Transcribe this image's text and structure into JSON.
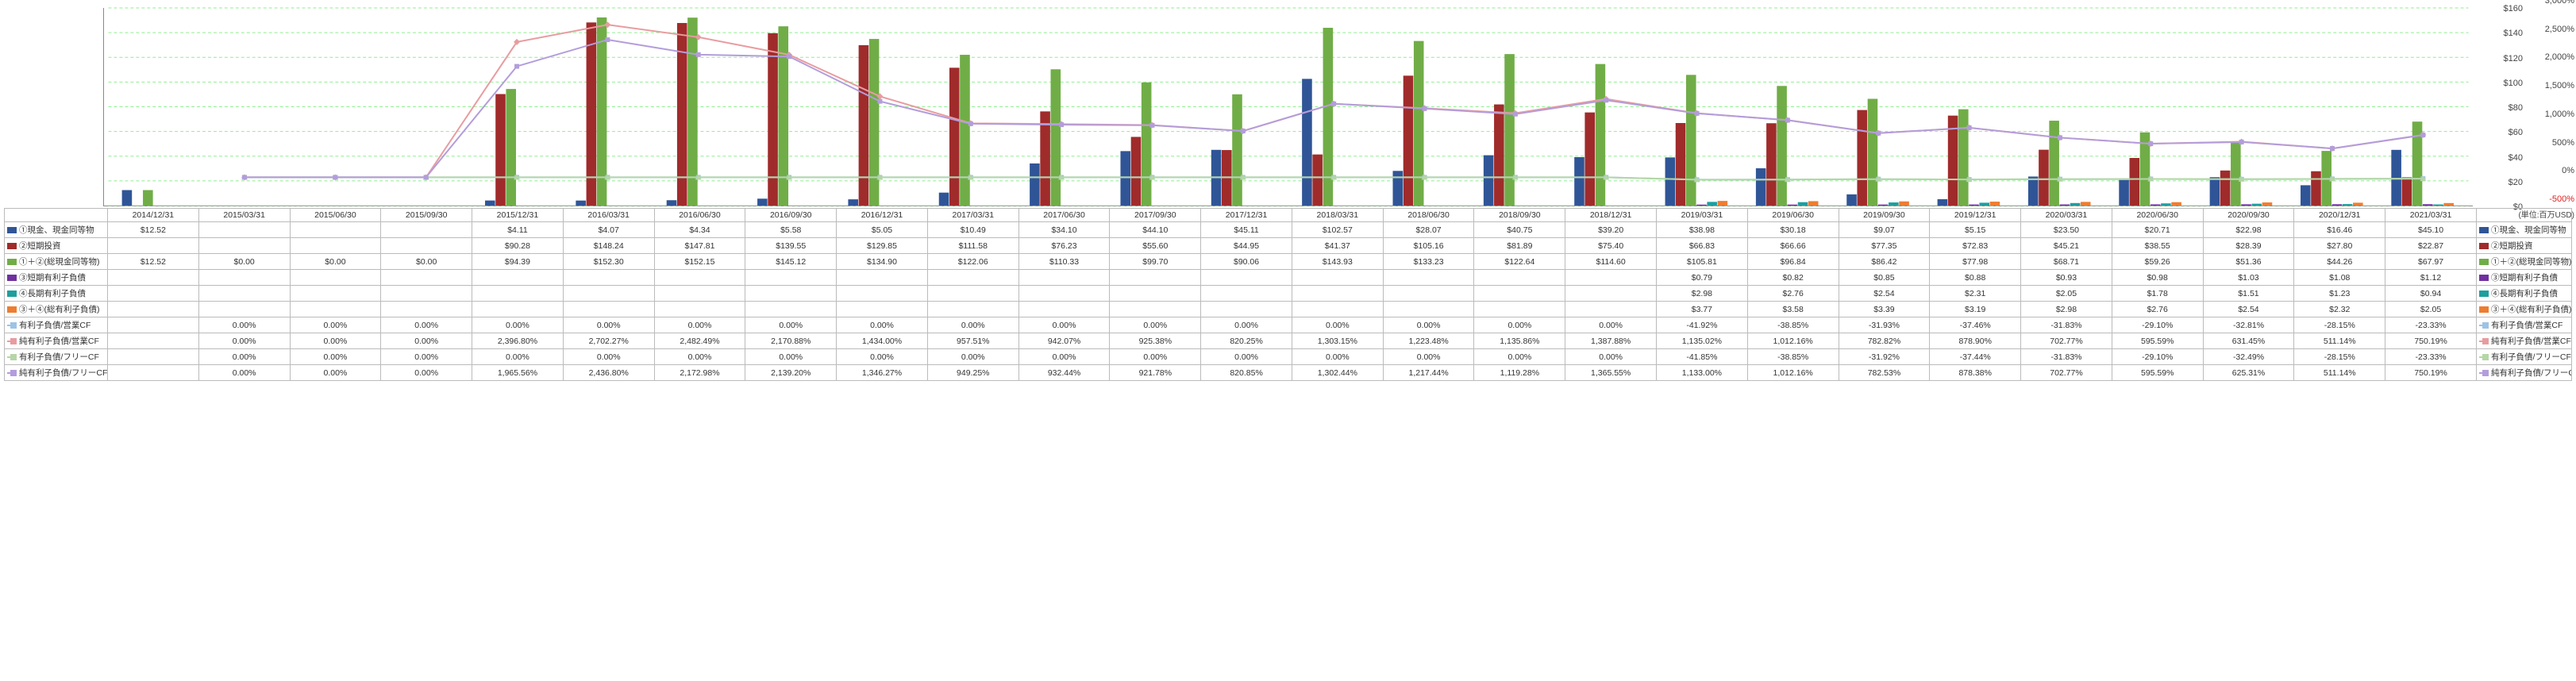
{
  "unit_label": "(単位:百万USD)",
  "left_axis": {
    "min": 0,
    "max": 160,
    "step": 20,
    "fmt": "$"
  },
  "right_axis_pct": {
    "min": -500,
    "max": 3000,
    "step": 500,
    "fmt": "%"
  },
  "dates": [
    "2014/12/31",
    "2015/03/31",
    "2015/06/30",
    "2015/09/30",
    "2015/12/31",
    "2016/03/31",
    "2016/06/30",
    "2016/09/30",
    "2016/12/31",
    "2017/03/31",
    "2017/06/30",
    "2017/09/30",
    "2017/12/31",
    "2018/03/31",
    "2018/06/30",
    "2018/09/30",
    "2018/12/31",
    "2019/03/31",
    "2019/06/30",
    "2019/09/30",
    "2019/12/31",
    "2020/03/31",
    "2020/06/30",
    "2020/09/30",
    "2020/12/31",
    "2021/03/31"
  ],
  "rows": [
    {
      "key": "cash",
      "label": "①現金、現金同等物",
      "type": "bar",
      "color": "#2f5597",
      "vals": [
        "$12.52",
        "",
        "",
        "",
        "$4.11",
        "$4.07",
        "$4.34",
        "$5.58",
        "$5.05",
        "$10.49",
        "$34.10",
        "$44.10",
        "$45.11",
        "$102.57",
        "$28.07",
        "$40.75",
        "$39.20",
        "$38.98",
        "$30.18",
        "$9.07",
        "$5.15",
        "$23.50",
        "$20.71",
        "$22.98",
        "$16.46",
        "$45.10"
      ]
    },
    {
      "key": "sti",
      "label": "②短期投資",
      "type": "bar",
      "color": "#a02b2b",
      "vals": [
        "",
        "",
        "",
        "",
        "$90.28",
        "$148.24",
        "$147.81",
        "$139.55",
        "$129.85",
        "$111.58",
        "$76.23",
        "$55.60",
        "$44.95",
        "$41.37",
        "$105.16",
        "$81.89",
        "$75.40",
        "$66.83",
        "$66.66",
        "$77.35",
        "$72.83",
        "$45.21",
        "$38.55",
        "$28.39",
        "$27.80",
        "$22.87"
      ]
    },
    {
      "key": "totcash",
      "label": "①＋②(総現金同等物)",
      "type": "bar",
      "color": "#70ad47",
      "vals": [
        "$12.52",
        "$0.00",
        "$0.00",
        "$0.00",
        "$94.39",
        "$152.30",
        "$152.15",
        "$145.12",
        "$134.90",
        "$122.06",
        "$110.33",
        "$99.70",
        "$90.06",
        "$143.93",
        "$133.23",
        "$122.64",
        "$114.60",
        "$105.81",
        "$96.84",
        "$86.42",
        "$77.98",
        "$68.71",
        "$59.26",
        "$51.36",
        "$44.26",
        "$67.97"
      ]
    },
    {
      "key": "std",
      "label": "③短期有利子負債",
      "type": "bar",
      "color": "#7030a0",
      "vals": [
        "",
        "",
        "",
        "",
        "",
        "",
        "",
        "",
        "",
        "",
        "",
        "",
        "",
        "",
        "",
        "",
        "",
        "$0.79",
        "$0.82",
        "$0.85",
        "$0.88",
        "$0.93",
        "$0.98",
        "$1.03",
        "$1.08",
        "$1.12"
      ]
    },
    {
      "key": "ltd",
      "label": "④長期有利子負債",
      "type": "bar",
      "color": "#1f9e9e",
      "vals": [
        "",
        "",
        "",
        "",
        "",
        "",
        "",
        "",
        "",
        "",
        "",
        "",
        "",
        "",
        "",
        "",
        "",
        "$2.98",
        "$2.76",
        "$2.54",
        "$2.31",
        "$2.05",
        "$1.78",
        "$1.51",
        "$1.23",
        "$0.94"
      ]
    },
    {
      "key": "totd",
      "label": "③＋④(総有利子負債)",
      "type": "bar",
      "color": "#ed7d31",
      "vals": [
        "",
        "",
        "",
        "",
        "",
        "",
        "",
        "",
        "",
        "",
        "",
        "",
        "",
        "",
        "",
        "",
        "",
        "$3.77",
        "$3.58",
        "$3.39",
        "$3.19",
        "$2.98",
        "$2.76",
        "$2.54",
        "$2.32",
        "$2.05"
      ]
    },
    {
      "key": "d_ocf",
      "label": "有利子負債/営業CF",
      "type": "line",
      "color": "#9cc3e6",
      "marker": "sq",
      "vals": [
        "",
        "0.00%",
        "0.00%",
        "0.00%",
        "0.00%",
        "0.00%",
        "0.00%",
        "0.00%",
        "0.00%",
        "0.00%",
        "0.00%",
        "0.00%",
        "0.00%",
        "0.00%",
        "0.00%",
        "0.00%",
        "0.00%",
        "-41.92%",
        "-38.85%",
        "-31.93%",
        "-37.46%",
        "-31.83%",
        "-29.10%",
        "-32.81%",
        "-28.15%",
        "-23.33%"
      ]
    },
    {
      "key": "nd_ocf",
      "label": "純有利子負債/営業CF",
      "type": "line",
      "color": "#e89ca0",
      "marker": "dm",
      "vals": [
        "",
        "0.00%",
        "0.00%",
        "0.00%",
        "2,396.80%",
        "2,702.27%",
        "2,482.49%",
        "2,170.88%",
        "1,434.00%",
        "957.51%",
        "942.07%",
        "925.38%",
        "820.25%",
        "1,303.15%",
        "1,223.48%",
        "1,135.86%",
        "1,387.88%",
        "1,135.02%",
        "1,012.16%",
        "782.82%",
        "878.90%",
        "702.77%",
        "595.59%",
        "631.45%",
        "511.14%",
        "750.19%"
      ]
    },
    {
      "key": "d_fcf",
      "label": "有利子負債/フリーCF",
      "type": "line",
      "color": "#b5d6a6",
      "marker": "tr",
      "vals": [
        "",
        "0.00%",
        "0.00%",
        "0.00%",
        "0.00%",
        "0.00%",
        "0.00%",
        "0.00%",
        "0.00%",
        "0.00%",
        "0.00%",
        "0.00%",
        "0.00%",
        "0.00%",
        "0.00%",
        "0.00%",
        "0.00%",
        "-41.85%",
        "-38.85%",
        "-31.92%",
        "-37.44%",
        "-31.83%",
        "-29.10%",
        "-32.49%",
        "-28.15%",
        "-23.33%"
      ]
    },
    {
      "key": "nd_fcf",
      "label": "純有利子負債/フリーCF",
      "type": "line",
      "color": "#b39ddb",
      "marker": "sq",
      "vals": [
        "",
        "0.00%",
        "0.00%",
        "0.00%",
        "1,965.56%",
        "2,436.80%",
        "2,172.98%",
        "2,139.20%",
        "1,346.27%",
        "949.25%",
        "932.44%",
        "921.78%",
        "820.85%",
        "1,302.44%",
        "1,217.44%",
        "1,119.28%",
        "1,365.55%",
        "1,133.00%",
        "1,012.16%",
        "782.53%",
        "878.38%",
        "702.77%",
        "595.59%",
        "625.31%",
        "511.14%",
        "750.19%"
      ]
    }
  ],
  "chart": {
    "bar_max": 160,
    "bar_width": 0.11,
    "group_gap": 1,
    "line_min": -500,
    "line_max": 3000
  }
}
